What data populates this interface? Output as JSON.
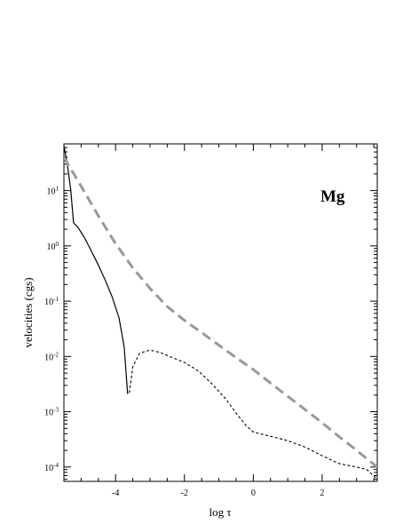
{
  "chart_data": {
    "type": "line",
    "title": "",
    "xlabel": "log τ",
    "ylabel": "velocities (cgs)",
    "annotation": "Mg",
    "xlim": [
      -5.5,
      3.6
    ],
    "ylim": [
      5.5e-05,
      70
    ],
    "y_scale": "log",
    "grid": false,
    "x_ticks": [
      {
        "value": -4,
        "label": "-4"
      },
      {
        "value": -2,
        "label": "-2"
      },
      {
        "value": 0,
        "label": "0"
      },
      {
        "value": 2,
        "label": "2"
      }
    ],
    "y_ticks": [
      {
        "value": 0.0001,
        "base": "10",
        "exp": "-4"
      },
      {
        "value": 0.001,
        "base": "10",
        "exp": "-3"
      },
      {
        "value": 0.01,
        "base": "10",
        "exp": "-2"
      },
      {
        "value": 0.1,
        "base": "10",
        "exp": "-1"
      },
      {
        "value": 1,
        "base": "10",
        "exp": "0"
      },
      {
        "value": 10,
        "base": "10",
        "exp": "1"
      }
    ],
    "series": [
      {
        "style": "solid",
        "color": "#000000",
        "points": [
          [
            -5.5,
            65
          ],
          [
            -5.4,
            30
          ],
          [
            -5.3,
            10
          ],
          [
            -5.22,
            2.6
          ],
          [
            -5.1,
            2.2
          ],
          [
            -4.9,
            1.4
          ],
          [
            -4.7,
            0.8
          ],
          [
            -4.5,
            0.45
          ],
          [
            -4.3,
            0.24
          ],
          [
            -4.1,
            0.12
          ],
          [
            -3.9,
            0.05
          ],
          [
            -3.75,
            0.015
          ],
          [
            -3.65,
            0.0021
          ]
        ]
      },
      {
        "style": "dashed",
        "color": "#000000",
        "points": [
          [
            -3.6,
            0.0022
          ],
          [
            -3.5,
            0.0065
          ],
          [
            -3.3,
            0.0115
          ],
          [
            -3.0,
            0.013
          ],
          [
            -2.7,
            0.0118
          ],
          [
            -2.4,
            0.0098
          ],
          [
            -2.0,
            0.0078
          ],
          [
            -1.6,
            0.0055
          ],
          [
            -1.2,
            0.0032
          ],
          [
            -0.8,
            0.0017
          ],
          [
            -0.5,
            0.00095
          ],
          [
            -0.2,
            0.00055
          ],
          [
            0.0,
            0.00043
          ],
          [
            0.5,
            0.00036
          ],
          [
            1.0,
            0.0003
          ],
          [
            1.5,
            0.00023
          ],
          [
            2.0,
            0.00016
          ],
          [
            2.5,
            0.000115
          ],
          [
            3.0,
            0.0001
          ],
          [
            3.3,
            9e-05
          ],
          [
            3.6,
            6e-05
          ]
        ]
      },
      {
        "style": "thick-dashed",
        "color": "#999999",
        "points": [
          [
            -5.5,
            40
          ],
          [
            -5.0,
            12
          ],
          [
            -4.5,
            3.5
          ],
          [
            -4.0,
            1.1
          ],
          [
            -3.5,
            0.4
          ],
          [
            -3.0,
            0.17
          ],
          [
            -2.5,
            0.08
          ],
          [
            -2.0,
            0.045
          ],
          [
            -1.5,
            0.027
          ],
          [
            -1.0,
            0.016
          ],
          [
            -0.5,
            0.0095
          ],
          [
            0.0,
            0.0058
          ],
          [
            0.5,
            0.0033
          ],
          [
            1.0,
            0.0019
          ],
          [
            1.5,
            0.0011
          ],
          [
            2.0,
            0.00063
          ],
          [
            2.5,
            0.00035
          ],
          [
            3.0,
            0.0002
          ],
          [
            3.6,
            0.0001
          ]
        ]
      }
    ]
  }
}
